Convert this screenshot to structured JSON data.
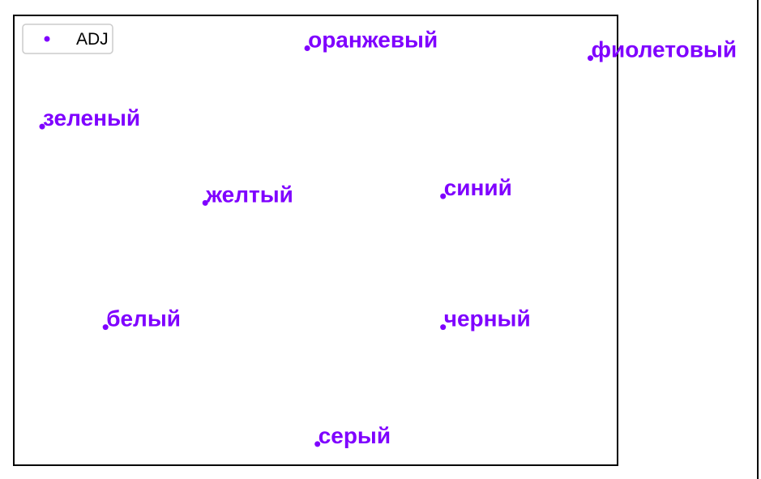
{
  "chart_data": {
    "type": "scatter",
    "title": "",
    "xlabel": "",
    "ylabel": "",
    "xlim": [
      0,
      10
    ],
    "ylim": [
      0,
      10
    ],
    "grid": false,
    "legend": {
      "placement": "top-left",
      "entries": [
        "ADJ"
      ]
    },
    "series": [
      {
        "name": "ADJ",
        "color": "#7f00ff",
        "points": [
          {
            "label": "оранжевый",
            "x": 4.86,
            "y": 9.27
          },
          {
            "label": "фиолетовый",
            "x": 9.55,
            "y": 9.05
          },
          {
            "label": "зеленый",
            "x": 0.47,
            "y": 7.53
          },
          {
            "label": "желтый",
            "x": 3.17,
            "y": 5.83
          },
          {
            "label": "синий",
            "x": 7.11,
            "y": 5.98
          },
          {
            "label": "белый",
            "x": 1.52,
            "y": 3.07
          },
          {
            "label": "черный",
            "x": 7.11,
            "y": 3.07
          },
          {
            "label": "серый",
            "x": 5.03,
            "y": 0.47
          }
        ]
      }
    ]
  }
}
